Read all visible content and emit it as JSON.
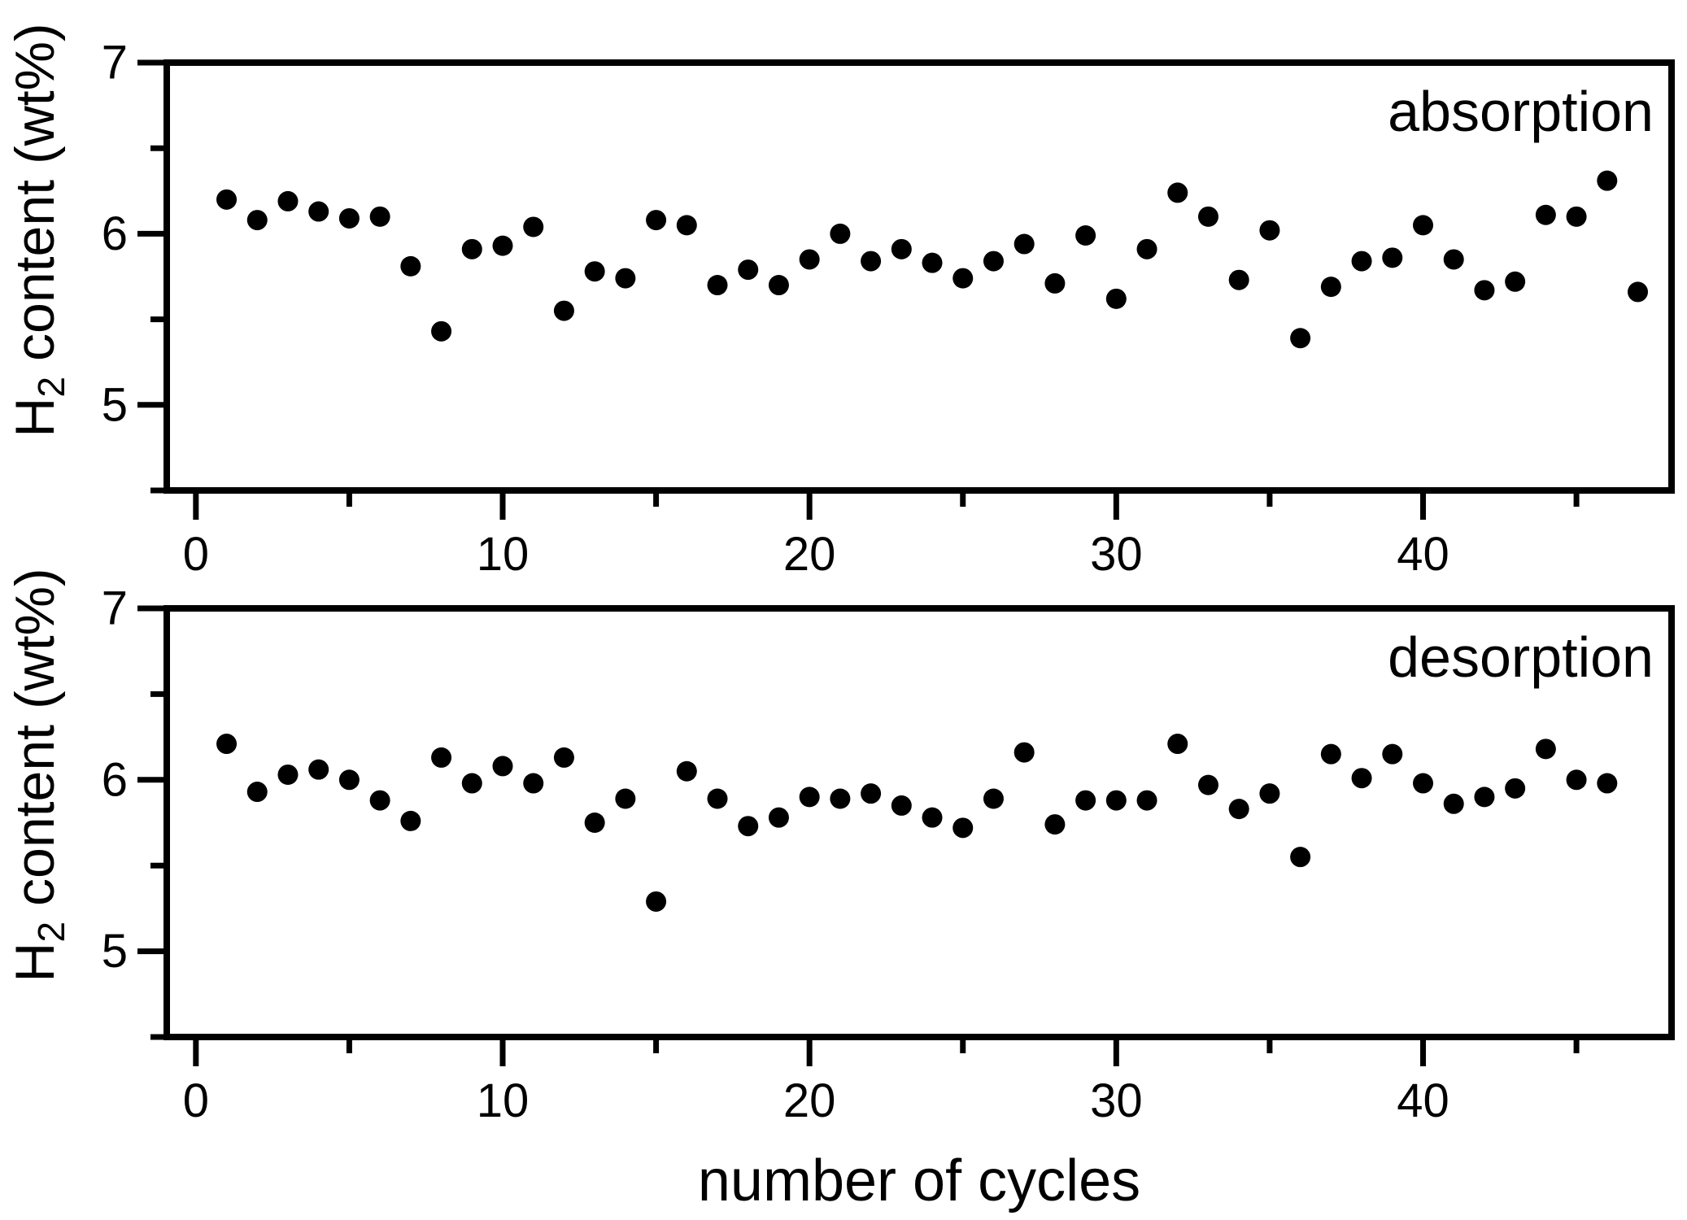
{
  "figure": {
    "background": "#ffffff",
    "foreground": "#000000",
    "marker_color": "#000000"
  },
  "labels": {
    "x_axis_title": "number of cycles",
    "y_title_main": "H",
    "y_title_sub": "2",
    "y_title_rest": " content (wt%)",
    "panel_top_label": "absorption",
    "panel_bottom_label": "desorption"
  },
  "chart_data": [
    {
      "type": "scatter",
      "panel": "top",
      "label": "absorption",
      "xlabel": "number of cycles",
      "ylabel": "H2 content (wt%)",
      "xlim": [
        -0.95,
        48.1
      ],
      "ylim": [
        4.5,
        7.0
      ],
      "x_major_ticks": [
        0,
        10,
        20,
        30,
        40
      ],
      "x_minor_ticks": [
        5,
        15,
        25,
        35,
        45
      ],
      "y_major_ticks": [
        5,
        6,
        7
      ],
      "y_minor_ticks": [
        4.5,
        5.5,
        6.5
      ],
      "grid": false,
      "legend": null,
      "marker": {
        "shape": "circle",
        "radius_px": 12.5,
        "color": "#000000"
      },
      "x": [
        1,
        2,
        3,
        4,
        5,
        6,
        7,
        8,
        9,
        10,
        11,
        12,
        13,
        14,
        15,
        16,
        17,
        18,
        19,
        20,
        21,
        22,
        23,
        24,
        25,
        26,
        27,
        28,
        29,
        30,
        31,
        32,
        33,
        34,
        35,
        36,
        37,
        38,
        39,
        40,
        41,
        42,
        43,
        44,
        45,
        46,
        47
      ],
      "y": [
        6.2,
        6.08,
        6.19,
        6.13,
        6.09,
        6.1,
        5.81,
        5.43,
        5.91,
        5.93,
        6.04,
        5.55,
        5.78,
        5.74,
        6.08,
        6.05,
        5.7,
        5.79,
        5.7,
        5.85,
        6.0,
        5.84,
        5.91,
        5.83,
        5.74,
        5.84,
        5.94,
        5.71,
        5.99,
        5.62,
        5.91,
        6.24,
        6.1,
        5.73,
        6.02,
        5.39,
        5.69,
        5.84,
        5.86,
        6.05,
        5.85,
        5.67,
        5.72,
        6.11,
        6.1,
        6.31,
        5.66
      ]
    },
    {
      "type": "scatter",
      "panel": "bottom",
      "label": "desorption",
      "xlabel": "number of cycles",
      "ylabel": "H2 content (wt%)",
      "xlim": [
        -0.95,
        48.1
      ],
      "ylim": [
        4.5,
        7.0
      ],
      "x_major_ticks": [
        0,
        10,
        20,
        30,
        40
      ],
      "x_minor_ticks": [
        5,
        15,
        25,
        35,
        45
      ],
      "y_major_ticks": [
        5,
        6,
        7
      ],
      "y_minor_ticks": [
        4.5,
        5.5,
        6.5
      ],
      "grid": false,
      "legend": null,
      "marker": {
        "shape": "circle",
        "radius_px": 12.5,
        "color": "#000000"
      },
      "x": [
        1,
        2,
        3,
        4,
        5,
        6,
        7,
        8,
        9,
        10,
        11,
        12,
        13,
        14,
        15,
        16,
        17,
        18,
        19,
        20,
        21,
        22,
        23,
        24,
        25,
        26,
        27,
        28,
        29,
        30,
        31,
        32,
        33,
        34,
        35,
        36,
        37,
        38,
        39,
        40,
        41,
        42,
        43,
        44,
        45,
        46
      ],
      "y": [
        6.21,
        5.93,
        6.03,
        6.06,
        6.0,
        5.88,
        5.76,
        6.13,
        5.98,
        6.08,
        5.98,
        6.13,
        5.75,
        5.89,
        5.29,
        6.05,
        5.89,
        5.73,
        5.78,
        5.9,
        5.89,
        5.92,
        5.85,
        5.78,
        5.72,
        5.89,
        6.16,
        5.74,
        5.88,
        5.88,
        5.88,
        6.21,
        5.97,
        5.83,
        5.92,
        5.55,
        6.15,
        6.01,
        6.15,
        5.98,
        5.86,
        5.9,
        5.95,
        6.18,
        6.0,
        5.98
      ]
    }
  ]
}
